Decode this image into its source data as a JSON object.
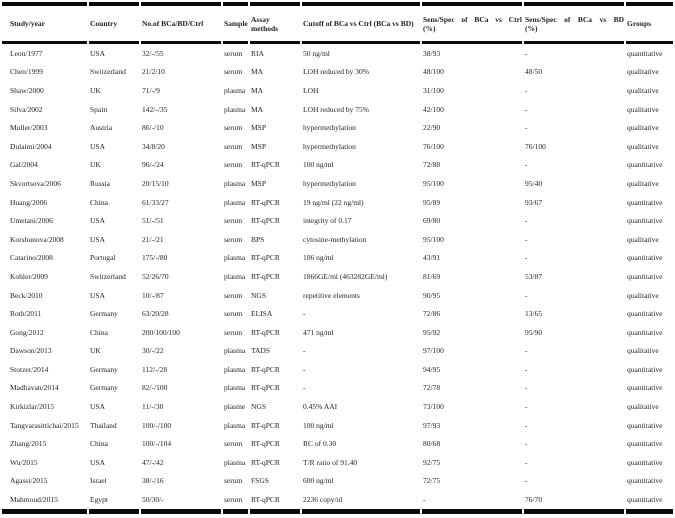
{
  "page": {
    "background_color": "#ffffff",
    "text_color": "#1f1f1f",
    "rule_color": "#0a0a0a"
  },
  "table": {
    "header": {
      "study_year": "Study/year",
      "country": "Country",
      "no_bca_bd_ctrl": "No.of BCa/BD/Ctrl",
      "sample": "Sample",
      "assay_line1": "Assay",
      "assay_line2": "methods",
      "cutoff": "Cutoff of BCa vs Ctrl (BCa vs BD)",
      "sens_ctrl_line1": "Sens/Spec of BCa vs Ctrl",
      "sens_ctrl_line2": "(%)",
      "sens_bd_line1": "Sens/Spec of BCa vs BD",
      "sens_bd_line2": "(%)",
      "groups": "Groups"
    },
    "rows": [
      [
        "Leon/1977",
        "USA",
        "32/-/55",
        "serum",
        "RIA",
        "50 ng/ml",
        "38/93",
        "-",
        "quantitative"
      ],
      [
        "Chen/1999",
        "Switzerland",
        "21/2/10",
        "serum",
        "MA",
        "LOH reduced by 30%",
        "48/100",
        "48/50",
        "qualitative"
      ],
      [
        "Shaw/2000",
        "UK",
        "71/-/9",
        "plasma",
        "MA",
        "LOH",
        "31/100",
        "-",
        "qualitative"
      ],
      [
        "Silva/2002",
        "Spain",
        "142/-/35",
        "plasma",
        "MA",
        "LOH reduced by 75%",
        "42/100",
        "-",
        "qualitative"
      ],
      [
        "Muller/2003",
        "Austria",
        "86/-/10",
        "serum",
        "MSP",
        "hypermethylation",
        "22/90",
        "-",
        "qualitative"
      ],
      [
        "Dulaimi/2004",
        "USA",
        "34/8/20",
        "serum",
        "MSP",
        "hypermethylation",
        "76/100",
        "76/100",
        "qualitative"
      ],
      [
        "Gal/2004",
        "UK",
        "96/-/24",
        "serum",
        "RT-qPCR",
        "100 ng/ml",
        "72/88",
        "-",
        "quantitative"
      ],
      [
        "Skvortsova/2006",
        "Russia",
        "20/15/10",
        "plasma",
        "MSP",
        "hypermethylation",
        "95/100",
        "95/40",
        "qualitative"
      ],
      [
        "Huang/2006",
        "China",
        "61/33/27",
        "plasma",
        "RT-qPCR",
        "19 ng/ml (22 ng/ml)",
        "95/89",
        "93/67",
        "quantitative"
      ],
      [
        "Umetani/2006",
        "USA",
        "51/-/51",
        "serum",
        "RT-qPCR",
        "integrity of 0.17",
        "69/80",
        "-",
        "quantitative"
      ],
      [
        "Korshunova/2008",
        "USA",
        "21/-/21",
        "serum",
        "BPS",
        "cytosine-methylation",
        "95/100",
        "-",
        "qualitative"
      ],
      [
        "Catarino/2008",
        "Portugal",
        "175/-/80",
        "plasma",
        "RT-qPCR",
        "106 ng/ml",
        "43/91",
        "-",
        "quantitative"
      ],
      [
        "Kohler/2009",
        "Switzerland",
        "52/26/70",
        "plasma",
        "RT-qPCR",
        "1866GE/ml (463282GE/ml)",
        "81/69",
        "53/87",
        "quantitative"
      ],
      [
        "Beck/2010",
        "USA",
        "10/-/87",
        "serum",
        "NGS",
        "repetitive elements",
        "90/95",
        "-",
        "qualitative"
      ],
      [
        "Roth/2011",
        "Germany",
        "63/20/28",
        "serum",
        "ELISA",
        "-",
        "72/86",
        "13/65",
        "quantitative"
      ],
      [
        "Gong/2012",
        "China",
        "200/100/100",
        "serum",
        "RT-qPCR",
        "471 ng/ml",
        "95/92",
        "95/90",
        "quantitative"
      ],
      [
        "Dawson/2013",
        "UK",
        "30/-/22",
        "plasma",
        "TADS",
        "-",
        "97/100",
        "-",
        "qualitative"
      ],
      [
        "Stotzer/2014",
        "Germany",
        "112/-/28",
        "plasma",
        "RT-qPCR",
        "-",
        "94/95",
        "-",
        "quantitative"
      ],
      [
        "Madhavan/2014",
        "Germany",
        "82/-/100",
        "plasma",
        "RT-qPCR",
        "-",
        "72/78",
        "-",
        "quantitative"
      ],
      [
        "Kirkizlar/2015",
        "USA",
        "11/-/30",
        "plasme",
        "NGS",
        "0.45% AAI",
        "73/100",
        "-",
        "qualitative"
      ],
      [
        "Tangvarasittichai/2015",
        "Thailand",
        "100/-/100",
        "plasma",
        "RT-qPCR",
        "100 ng/ml",
        "97/93",
        "-",
        "quantitative"
      ],
      [
        "Zhang/2015",
        "China",
        "100/-/104",
        "serum",
        "RT-qPCR",
        "RC of 0.30",
        "80/68",
        "-",
        "quantitative"
      ],
      [
        "Wu/2015",
        "USA",
        "47/-/42",
        "plasma",
        "RT-qPCR",
        "T/R ratio of 91.40",
        "92/75",
        "-",
        "quantitative"
      ],
      [
        "Agassi/2015",
        "Israel",
        "38/-/16",
        "serum",
        "FSGS",
        "600 ng/ml",
        "72/75",
        "-",
        "quantitative"
      ],
      [
        "Mahmoud/2015",
        "Egypt",
        "50/30/-",
        "serum",
        "RT-qPCR",
        "2236 copy/ul",
        "-",
        "76/70",
        "quantitative"
      ]
    ]
  }
}
